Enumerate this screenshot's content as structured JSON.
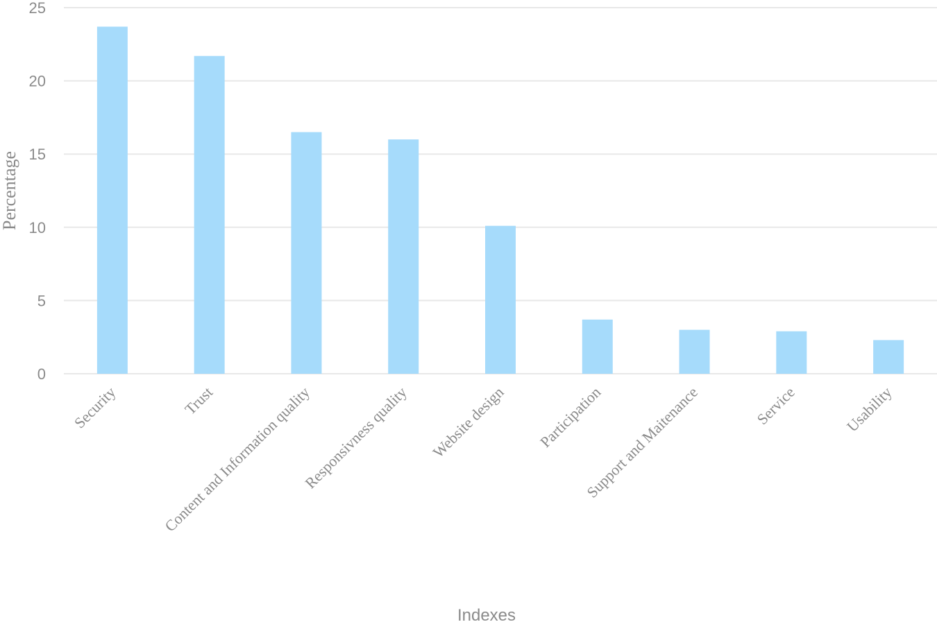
{
  "chart_data": {
    "type": "bar",
    "categories": [
      "Security",
      "Trust",
      "Content and Information quality",
      "Responsivness quality",
      "Website design",
      "Participation",
      "Support and Maitenance",
      "Service",
      "Usability"
    ],
    "values": [
      23.7,
      21.7,
      16.5,
      16.0,
      10.1,
      3.7,
      3.0,
      2.9,
      2.3
    ],
    "title": "",
    "xlabel": "Indexes",
    "ylabel": "Percentage",
    "ylim": [
      0,
      25
    ],
    "yticks": [
      0,
      5,
      10,
      15,
      20,
      25
    ],
    "grid": true,
    "bar_color": "#a6dbfb",
    "grid_color": "#e8e8e8"
  }
}
